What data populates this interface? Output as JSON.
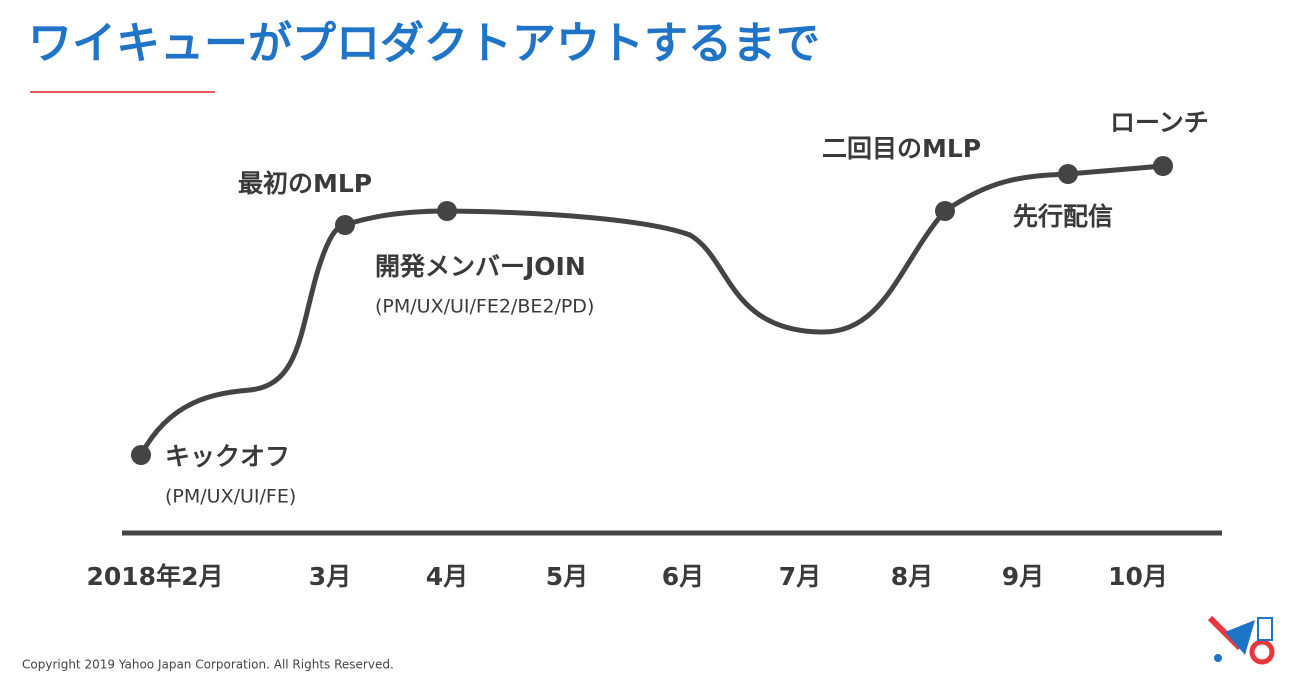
{
  "header": {
    "title": "ワイキューがプロダクトアウトするまで"
  },
  "milestones": [
    {
      "label": "キックオフ",
      "sublabel": "(PM/UX/UI/FE)"
    },
    {
      "label": "最初のMLP"
    },
    {
      "label": "開発メンバーJOIN",
      "sublabel": "(PM/UX/UI/FE2/BE2/PD)"
    },
    {
      "label": "二回目のMLP"
    },
    {
      "label": "先行配信"
    },
    {
      "label": "ローンチ"
    }
  ],
  "months": [
    "2018年2月",
    "3月",
    "4月",
    "5月",
    "6月",
    "7月",
    "8月",
    "9月",
    "10月"
  ],
  "footer": {
    "copyright": "Copyright 2019  Yahoo Japan Corporation. All Rights Reserved."
  }
}
